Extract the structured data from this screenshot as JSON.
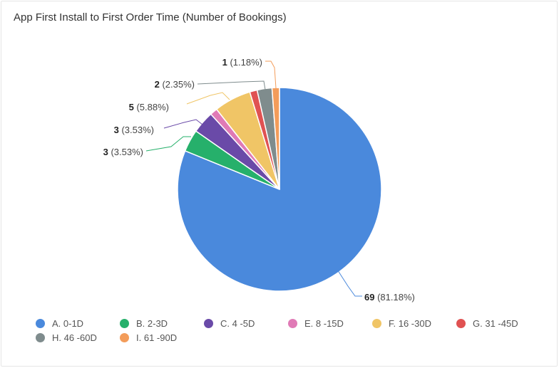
{
  "chart_data": {
    "type": "pie",
    "title": "App First Install to First Order Time (Number of Bookings)",
    "slices": [
      {
        "name": "A. 0-1D",
        "value": 69,
        "label_value": "69",
        "label_pct": "(81.18%)",
        "color": "#4a89dc"
      },
      {
        "name": "B. 2-3D",
        "value": 3,
        "label_value": "3",
        "label_pct": "(3.53%)",
        "color": "#26b06b"
      },
      {
        "name": "C. 4 -5D",
        "value": 3,
        "label_value": "3",
        "label_pct": "(3.53%)",
        "color": "#6a4aa8"
      },
      {
        "name": "E. 8 -15D",
        "value": 1,
        "label_value": "",
        "label_pct": "",
        "color": "#e07ab6"
      },
      {
        "name": "F. 16 -30D",
        "value": 5,
        "label_value": "5",
        "label_pct": "(5.88%)",
        "color": "#f0c566"
      },
      {
        "name": "G. 31 -45D",
        "value": 1,
        "label_value": "",
        "label_pct": "",
        "color": "#e05252"
      },
      {
        "name": "H. 46 -60D",
        "value": 2,
        "label_value": "2",
        "label_pct": "(2.35%)",
        "color": "#7f8c8d"
      },
      {
        "name": "I. 61 -90D",
        "value": 1,
        "label_value": "1",
        "label_pct": "(1.18%)",
        "color": "#f39c5a"
      }
    ],
    "legend_position": "bottom"
  }
}
